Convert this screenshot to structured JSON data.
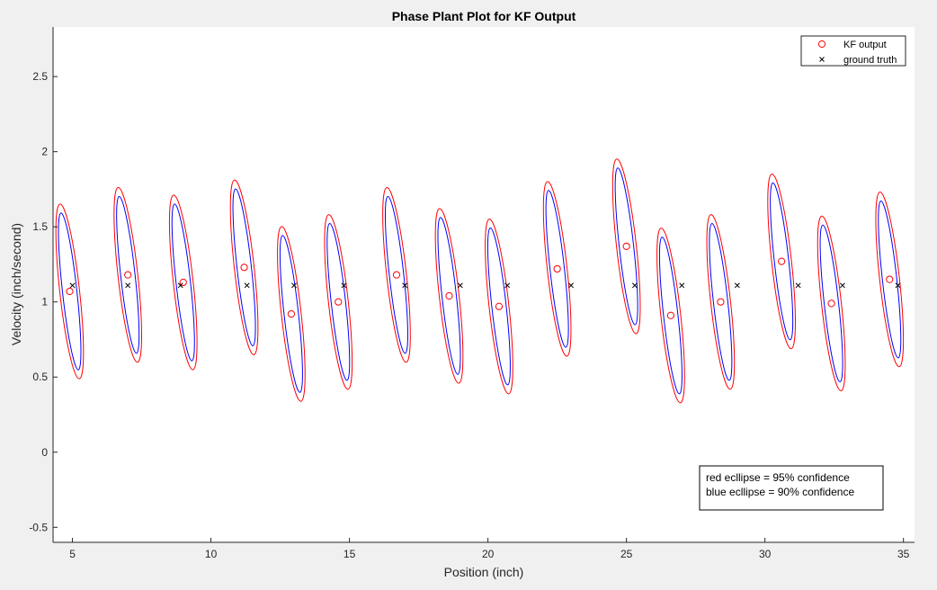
{
  "chart_data": {
    "type": "scatter",
    "title": "Phase Plant Plot for KF Output",
    "xlabel": "Position (inch)",
    "ylabel": "Velocity (inch/second)",
    "xlim": [
      4.3,
      35.4
    ],
    "ylim": [
      -0.6,
      2.83
    ],
    "xticks": [
      5,
      10,
      15,
      20,
      25,
      30,
      35
    ],
    "yticks": [
      -0.5,
      0,
      0.5,
      1,
      1.5,
      2,
      2.5
    ],
    "grid": false,
    "legend": {
      "location": "top-right",
      "entries": [
        "KF output",
        "ground truth"
      ]
    },
    "annotation": [
      "red ecllipse = 95% confidence",
      "blue ecllipse = 90% confidence"
    ],
    "colors": {
      "kf_output": "#ff0000",
      "ground_truth": "#000000",
      "ellipse_95": "#ff0000",
      "ellipse_90": "#0000ff",
      "axes_bg": "#ffffff",
      "figure_bg": "#f0f0f0"
    },
    "series": [
      {
        "name": "KF output",
        "marker": "circle",
        "x": [
          4.9,
          7.0,
          9.0,
          11.2,
          12.9,
          14.6,
          16.7,
          18.6,
          20.4,
          22.5,
          25.0,
          26.6,
          28.4,
          30.6,
          32.4,
          34.5
        ],
        "y": [
          1.07,
          1.18,
          1.13,
          1.23,
          0.92,
          1.0,
          1.18,
          1.04,
          0.97,
          1.22,
          1.37,
          0.91,
          1.0,
          1.27,
          0.99,
          1.15
        ]
      },
      {
        "name": "ground truth",
        "marker": "x",
        "x": [
          5.0,
          7.0,
          8.9,
          11.3,
          13.0,
          14.8,
          17.0,
          19.0,
          20.7,
          23.0,
          25.3,
          27.0,
          29.0,
          31.2,
          32.8,
          34.8
        ],
        "y": [
          1.11,
          1.11,
          1.11,
          1.11,
          1.11,
          1.11,
          1.11,
          1.11,
          1.11,
          1.11,
          1.11,
          1.11,
          1.11,
          1.11,
          1.11,
          1.11
        ]
      }
    ]
  }
}
